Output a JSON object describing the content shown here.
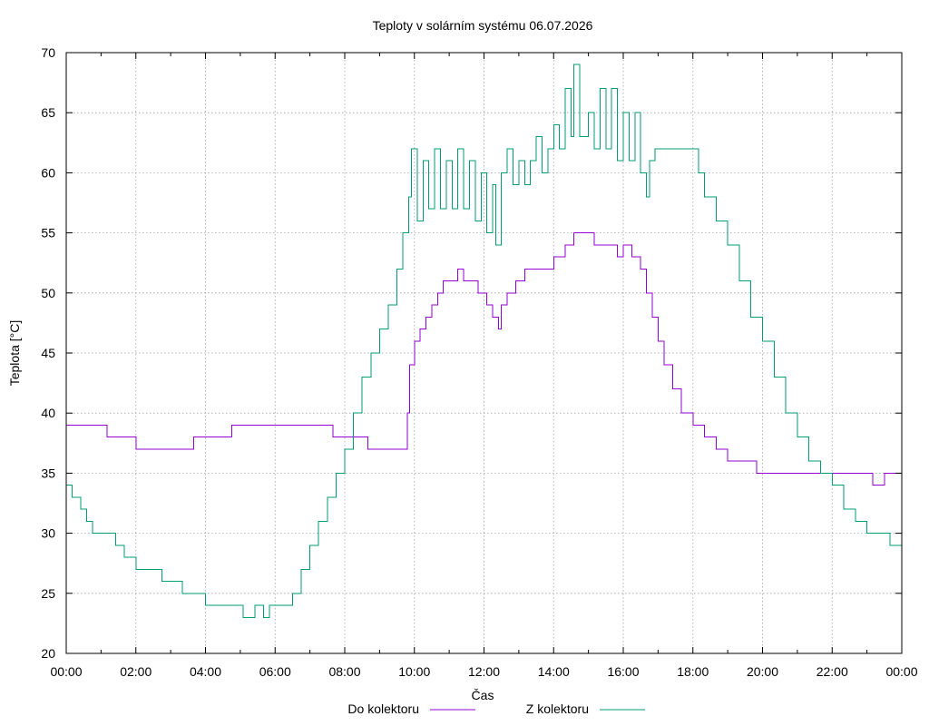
{
  "chart_data": {
    "type": "line",
    "title": "Teploty v solárním systému 06.07.2026",
    "xlabel": "Čas",
    "ylabel": "Teplota [°C]",
    "xlim": [
      "00:00",
      "24:00"
    ],
    "ylim": [
      20,
      70
    ],
    "x_tick_labels": [
      "00:00",
      "02:00",
      "04:00",
      "06:00",
      "08:00",
      "10:00",
      "12:00",
      "14:00",
      "16:00",
      "18:00",
      "20:00",
      "22:00",
      "00:00"
    ],
    "y_ticks": [
      20,
      25,
      30,
      35,
      40,
      45,
      50,
      55,
      60,
      65,
      70
    ],
    "grid": true,
    "legend_position": "bottom",
    "series": [
      {
        "name": "Do kolektoru",
        "color": "#9400d3",
        "points": [
          [
            "00:00",
            39
          ],
          [
            "01:10",
            39
          ],
          [
            "01:10",
            38
          ],
          [
            "01:58",
            38
          ],
          [
            "02:00",
            37
          ],
          [
            "03:40",
            37
          ],
          [
            "03:40",
            38
          ],
          [
            "04:45",
            38
          ],
          [
            "04:45",
            39
          ],
          [
            "07:40",
            39
          ],
          [
            "07:40",
            38
          ],
          [
            "08:40",
            38
          ],
          [
            "08:40",
            37
          ],
          [
            "09:45",
            37
          ],
          [
            "09:48",
            40
          ],
          [
            "09:52",
            44
          ],
          [
            "10:00",
            46
          ],
          [
            "10:10",
            47
          ],
          [
            "10:20",
            48
          ],
          [
            "10:30",
            49
          ],
          [
            "10:40",
            50
          ],
          [
            "10:50",
            51
          ],
          [
            "11:10",
            51
          ],
          [
            "11:15",
            52
          ],
          [
            "11:25",
            51
          ],
          [
            "11:40",
            51
          ],
          [
            "11:50",
            50
          ],
          [
            "12:05",
            49
          ],
          [
            "12:15",
            48
          ],
          [
            "12:25",
            47
          ],
          [
            "12:30",
            49
          ],
          [
            "12:40",
            50
          ],
          [
            "12:55",
            51
          ],
          [
            "13:10",
            52
          ],
          [
            "13:30",
            52
          ],
          [
            "13:45",
            52
          ],
          [
            "14:00",
            53
          ],
          [
            "14:20",
            54
          ],
          [
            "14:35",
            55
          ],
          [
            "15:00",
            55
          ],
          [
            "15:10",
            54
          ],
          [
            "15:40",
            54
          ],
          [
            "15:50",
            53
          ],
          [
            "16:00",
            54
          ],
          [
            "16:15",
            53
          ],
          [
            "16:30",
            52
          ],
          [
            "16:40",
            50
          ],
          [
            "16:50",
            48
          ],
          [
            "17:00",
            46
          ],
          [
            "17:10",
            44
          ],
          [
            "17:25",
            42
          ],
          [
            "17:40",
            40
          ],
          [
            "18:00",
            39
          ],
          [
            "18:20",
            38
          ],
          [
            "18:40",
            37
          ],
          [
            "19:00",
            36
          ],
          [
            "19:40",
            36
          ],
          [
            "19:50",
            35
          ],
          [
            "23:00",
            35
          ],
          [
            "23:10",
            34
          ],
          [
            "23:30",
            35
          ],
          [
            "24:00",
            35
          ]
        ]
      },
      {
        "name": "Z kolektoru",
        "color": "#009e73",
        "points": [
          [
            "00:00",
            34
          ],
          [
            "00:10",
            33
          ],
          [
            "00:25",
            32
          ],
          [
            "00:35",
            31
          ],
          [
            "00:45",
            30
          ],
          [
            "01:20",
            30
          ],
          [
            "01:25",
            29
          ],
          [
            "01:40",
            28
          ],
          [
            "02:00",
            27
          ],
          [
            "02:40",
            27
          ],
          [
            "02:45",
            26
          ],
          [
            "03:15",
            26
          ],
          [
            "03:20",
            25
          ],
          [
            "03:55",
            25
          ],
          [
            "04:00",
            24
          ],
          [
            "05:00",
            24
          ],
          [
            "05:05",
            23
          ],
          [
            "05:25",
            24
          ],
          [
            "05:40",
            23
          ],
          [
            "05:50",
            24
          ],
          [
            "06:20",
            24
          ],
          [
            "06:30",
            25
          ],
          [
            "06:45",
            27
          ],
          [
            "07:00",
            29
          ],
          [
            "07:15",
            31
          ],
          [
            "07:30",
            33
          ],
          [
            "07:45",
            35
          ],
          [
            "08:00",
            37
          ],
          [
            "08:15",
            40
          ],
          [
            "08:30",
            43
          ],
          [
            "08:45",
            45
          ],
          [
            "09:00",
            47
          ],
          [
            "09:15",
            49
          ],
          [
            "09:30",
            52
          ],
          [
            "09:40",
            55
          ],
          [
            "09:50",
            58
          ],
          [
            "09:55",
            62
          ],
          [
            "10:05",
            56
          ],
          [
            "10:15",
            61
          ],
          [
            "10:25",
            57
          ],
          [
            "10:35",
            62
          ],
          [
            "10:45",
            57
          ],
          [
            "10:55",
            61
          ],
          [
            "11:05",
            57
          ],
          [
            "11:15",
            62
          ],
          [
            "11:25",
            57
          ],
          [
            "11:35",
            61
          ],
          [
            "11:45",
            56
          ],
          [
            "11:55",
            60
          ],
          [
            "12:05",
            55
          ],
          [
            "12:15",
            59
          ],
          [
            "12:20",
            54
          ],
          [
            "12:30",
            60
          ],
          [
            "12:40",
            62
          ],
          [
            "12:50",
            59
          ],
          [
            "13:00",
            61
          ],
          [
            "13:10",
            59
          ],
          [
            "13:20",
            61
          ],
          [
            "13:30",
            63
          ],
          [
            "13:40",
            60
          ],
          [
            "13:50",
            62
          ],
          [
            "14:00",
            64
          ],
          [
            "14:10",
            62
          ],
          [
            "14:20",
            67
          ],
          [
            "14:30",
            63
          ],
          [
            "14:35",
            69
          ],
          [
            "14:45",
            63
          ],
          [
            "15:00",
            65
          ],
          [
            "15:10",
            62
          ],
          [
            "15:20",
            67
          ],
          [
            "15:30",
            62
          ],
          [
            "15:40",
            67
          ],
          [
            "15:50",
            61
          ],
          [
            "16:00",
            65
          ],
          [
            "16:10",
            61
          ],
          [
            "16:20",
            65
          ],
          [
            "16:30",
            60
          ],
          [
            "16:40",
            58
          ],
          [
            "16:45",
            61
          ],
          [
            "16:55",
            62
          ],
          [
            "17:00",
            62
          ],
          [
            "18:00",
            62
          ],
          [
            "18:10",
            60
          ],
          [
            "18:20",
            58
          ],
          [
            "18:40",
            56
          ],
          [
            "19:00",
            54
          ],
          [
            "19:20",
            51
          ],
          [
            "19:40",
            48
          ],
          [
            "20:00",
            46
          ],
          [
            "20:20",
            43
          ],
          [
            "20:40",
            40
          ],
          [
            "21:00",
            38
          ],
          [
            "21:20",
            36
          ],
          [
            "21:40",
            35
          ],
          [
            "22:00",
            34
          ],
          [
            "22:20",
            32
          ],
          [
            "22:40",
            31
          ],
          [
            "23:00",
            30
          ],
          [
            "23:30",
            30
          ],
          [
            "23:40",
            29
          ],
          [
            "24:00",
            28
          ]
        ]
      }
    ]
  }
}
